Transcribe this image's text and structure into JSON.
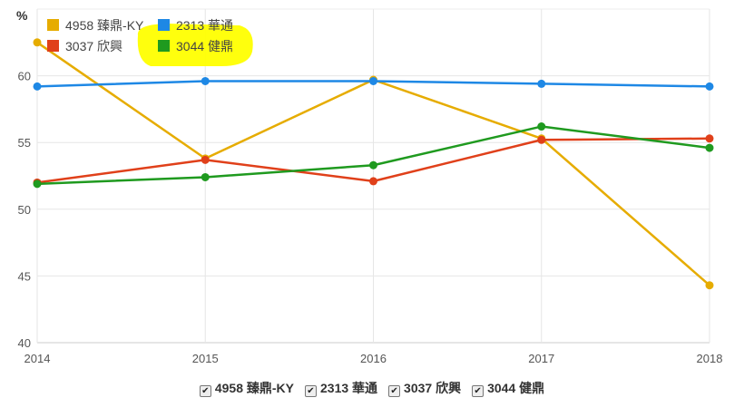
{
  "chart_data": {
    "type": "line",
    "ylabel": "%",
    "ylim": [
      40,
      65
    ],
    "y_ticks": [
      40,
      45,
      50,
      55,
      60
    ],
    "x": [
      "2014",
      "2015",
      "2016",
      "2017",
      "2018"
    ],
    "grid": true,
    "legend_position": "top-left",
    "highlight": {
      "series": "3044 健鼎",
      "color": "#ffff00"
    },
    "series": [
      {
        "name": "4958 臻鼎-KY",
        "color": "#e6ac00",
        "values": [
          62.5,
          53.8,
          59.7,
          55.3,
          44.3
        ]
      },
      {
        "name": "2313 華通",
        "color": "#1e88e5",
        "values": [
          59.2,
          59.6,
          59.6,
          59.4,
          59.2
        ]
      },
      {
        "name": "3037 欣興",
        "color": "#e0401a",
        "values": [
          52.0,
          53.7,
          52.1,
          55.2,
          55.3
        ]
      },
      {
        "name": "3044 健鼎",
        "color": "#1f9a1f",
        "values": [
          51.9,
          52.4,
          53.3,
          56.2,
          54.6
        ]
      }
    ],
    "checkbox_legend": [
      "4958 臻鼎-KY",
      "2313 華通",
      "3037 欣興",
      "3044 健鼎"
    ],
    "checkbox_mark": "✔"
  }
}
